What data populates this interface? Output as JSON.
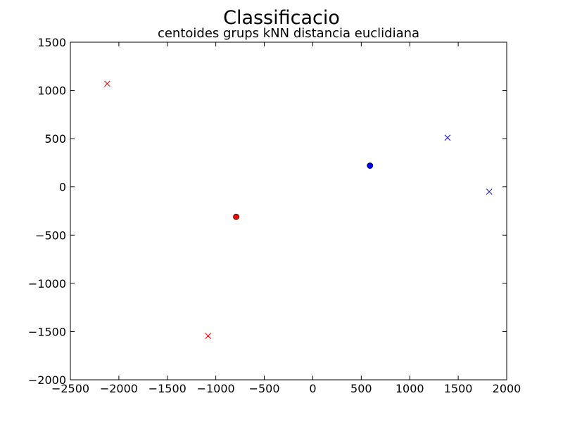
{
  "chart_data": {
    "type": "scatter",
    "title": "Classificacio",
    "subtitle": "centoides grups kNN distancia euclidiana",
    "xlabel": "",
    "ylabel": "",
    "xlim": [
      -2500,
      2000
    ],
    "ylim": [
      -2000,
      1500
    ],
    "xticks": [
      -2500,
      -2000,
      -1500,
      -1000,
      -500,
      0,
      500,
      1000,
      1500,
      2000
    ],
    "yticks": [
      -2000,
      -1500,
      -1000,
      -500,
      0,
      500,
      1000,
      1500
    ],
    "xtick_labels": [
      "−2500",
      "−2000",
      "−1500",
      "−1000",
      "−500",
      "0",
      "500",
      "1000",
      "1500",
      "2000"
    ],
    "ytick_labels": [
      "−2000",
      "−1500",
      "−1000",
      "−500",
      "0",
      "500",
      "1000",
      "1500"
    ],
    "grid": false,
    "legend": false,
    "series": [
      {
        "color": "#ff0000",
        "marker": "x",
        "points": [
          {
            "x": -2120,
            "y": 1070
          },
          {
            "x": -1080,
            "y": -1545
          }
        ]
      },
      {
        "color": "#0000ff",
        "marker": "x",
        "points": [
          {
            "x": 1390,
            "y": 510
          },
          {
            "x": 1820,
            "y": -50
          }
        ]
      },
      {
        "color": "#ff0000",
        "marker": "o",
        "points": [
          {
            "x": -790,
            "y": -310
          }
        ]
      },
      {
        "color": "#0000ff",
        "marker": "o",
        "points": [
          {
            "x": 590,
            "y": 220
          }
        ]
      }
    ]
  }
}
